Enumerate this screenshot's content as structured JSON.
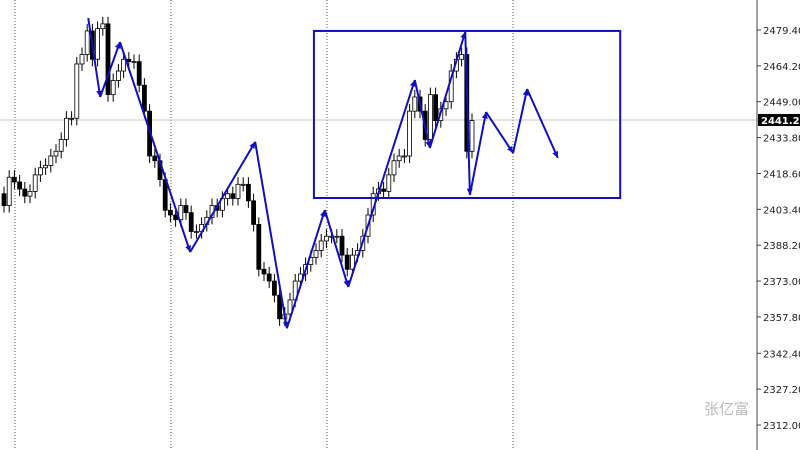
{
  "chart_data": {
    "type": "candlestick",
    "title": "",
    "ylim": [
      2305,
      2490
    ],
    "y_ticks": [
      "2479.40",
      "2464.20",
      "2449.00",
      "2433.80",
      "2418.60",
      "2403.40",
      "2388.20",
      "2373.00",
      "2357.80",
      "2342.40",
      "2327.20",
      "2312.00"
    ],
    "current_price": "2441.27",
    "grid": "vertical dotted",
    "colors": {
      "bull": "#ffffff",
      "bear": "#000000",
      "annotation": "#1010c0",
      "current_line": "#c8c8c8"
    },
    "open": [
      2410,
      2405,
      2417,
      2415,
      2412,
      2409,
      2411,
      2418,
      2421,
      2422,
      2426,
      2428,
      2433,
      2442,
      2442,
      2465,
      2469,
      2479,
      2467,
      2480,
      2482,
      2452,
      2458,
      2462,
      2467,
      2466,
      2466,
      2456,
      2445,
      2426,
      2424,
      2416,
      2403,
      2401,
      2399,
      2405,
      2402,
      2394,
      2394,
      2397,
      2400,
      2405,
      2403,
      2408,
      2410,
      2408,
      2414,
      2414,
      2407,
      2397,
      2378,
      2376,
      2373,
      2367,
      2357,
      2359,
      2365,
      2373,
      2376,
      2380,
      2383,
      2386,
      2390,
      2392,
      2392,
      2392,
      2384,
      2378,
      2384,
      2386,
      2392,
      2401,
      2410,
      2412,
      2411,
      2418,
      2424,
      2426,
      2426,
      2445,
      2451,
      2445,
      2433,
      2452,
      2441,
      2446,
      2449,
      2462,
      2467,
      2469,
      2428
    ],
    "high": [
      2413,
      2420,
      2420,
      2418,
      2415,
      2414,
      2421,
      2424,
      2425,
      2429,
      2431,
      2436,
      2445,
      2445,
      2468,
      2472,
      2482,
      2482,
      2483,
      2485,
      2485,
      2461,
      2465,
      2470,
      2470,
      2469,
      2469,
      2459,
      2448,
      2429,
      2427,
      2419,
      2406,
      2404,
      2408,
      2408,
      2405,
      2397,
      2400,
      2403,
      2408,
      2408,
      2411,
      2413,
      2413,
      2417,
      2417,
      2417,
      2410,
      2400,
      2381,
      2379,
      2376,
      2370,
      2362,
      2368,
      2376,
      2379,
      2383,
      2386,
      2389,
      2393,
      2395,
      2395,
      2395,
      2395,
      2387,
      2387,
      2389,
      2395,
      2404,
      2413,
      2415,
      2415,
      2421,
      2427,
      2429,
      2429,
      2448,
      2454,
      2454,
      2448,
      2455,
      2455,
      2449,
      2452,
      2465,
      2470,
      2472,
      2472,
      2444
    ],
    "low": [
      2402,
      2402,
      2412,
      2409,
      2406,
      2406,
      2408,
      2415,
      2418,
      2419,
      2423,
      2425,
      2430,
      2439,
      2439,
      2462,
      2466,
      2464,
      2464,
      2477,
      2449,
      2449,
      2455,
      2459,
      2463,
      2463,
      2453,
      2442,
      2423,
      2421,
      2413,
      2400,
      2398,
      2396,
      2396,
      2399,
      2391,
      2391,
      2391,
      2394,
      2397,
      2400,
      2400,
      2405,
      2405,
      2405,
      2411,
      2404,
      2394,
      2375,
      2373,
      2370,
      2364,
      2354,
      2354,
      2356,
      2362,
      2370,
      2373,
      2377,
      2380,
      2383,
      2387,
      2389,
      2389,
      2381,
      2375,
      2375,
      2381,
      2383,
      2389,
      2398,
      2407,
      2408,
      2408,
      2415,
      2421,
      2423,
      2423,
      2442,
      2442,
      2430,
      2430,
      2438,
      2438,
      2443,
      2446,
      2459,
      2464,
      2425,
      2425
    ],
    "close": [
      2405,
      2417,
      2415,
      2412,
      2409,
      2411,
      2418,
      2421,
      2422,
      2426,
      2428,
      2433,
      2442,
      2442,
      2465,
      2469,
      2479,
      2467,
      2480,
      2482,
      2452,
      2458,
      2462,
      2467,
      2466,
      2466,
      2456,
      2445,
      2426,
      2424,
      2416,
      2403,
      2401,
      2399,
      2405,
      2402,
      2394,
      2394,
      2397,
      2400,
      2405,
      2403,
      2408,
      2410,
      2408,
      2414,
      2414,
      2407,
      2397,
      2378,
      2376,
      2373,
      2367,
      2357,
      2359,
      2365,
      2373,
      2376,
      2380,
      2383,
      2386,
      2390,
      2392,
      2392,
      2392,
      2384,
      2378,
      2384,
      2386,
      2392,
      2401,
      2410,
      2412,
      2411,
      2418,
      2424,
      2426,
      2426,
      2445,
      2451,
      2445,
      2433,
      2452,
      2441,
      2446,
      2449,
      2462,
      2467,
      2469,
      2428,
      2441
    ],
    "annotation_path_bar_price": [
      [
        16.2,
        2484.5
      ],
      [
        18.5,
        2451
      ],
      [
        22.3,
        2474.3
      ],
      [
        35.8,
        2385.3
      ],
      [
        48.3,
        2432
      ],
      [
        54.4,
        2353
      ],
      [
        61.7,
        2403.1
      ],
      [
        66.2,
        2370.5
      ],
      [
        79,
        2458.2
      ],
      [
        81.9,
        2429.4
      ],
      [
        88.7,
        2478.6
      ],
      [
        89.6,
        2409.5
      ],
      [
        92.7,
        2444.6
      ],
      [
        97.9,
        2427.3
      ],
      [
        100.6,
        2454.4
      ],
      [
        106.5,
        2425.2
      ]
    ],
    "annotation_box_bar_price": {
      "bar_from": 59.6,
      "bar_to": 118.5,
      "price_top": 2479,
      "price_bottom": 2408.2
    }
  },
  "watermark": "张亿富"
}
